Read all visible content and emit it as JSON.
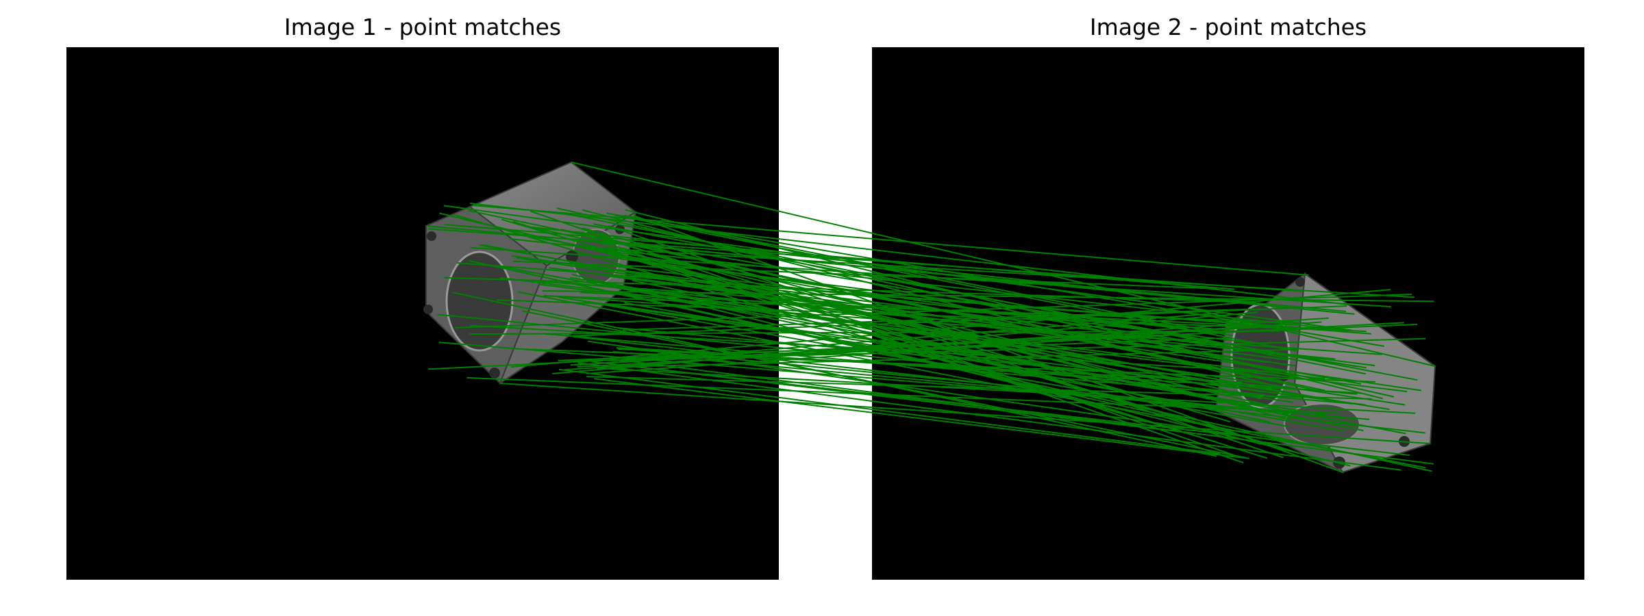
{
  "figure": {
    "panel_1_title": "Image 1 - point matches",
    "panel_2_title": "Image 2 - point matches",
    "background_color": "#000000",
    "match_line_color": "#008000",
    "object_face_colors": [
      "#7a7a7a",
      "#5c5c5c",
      "#4a4a4a"
    ]
  }
}
